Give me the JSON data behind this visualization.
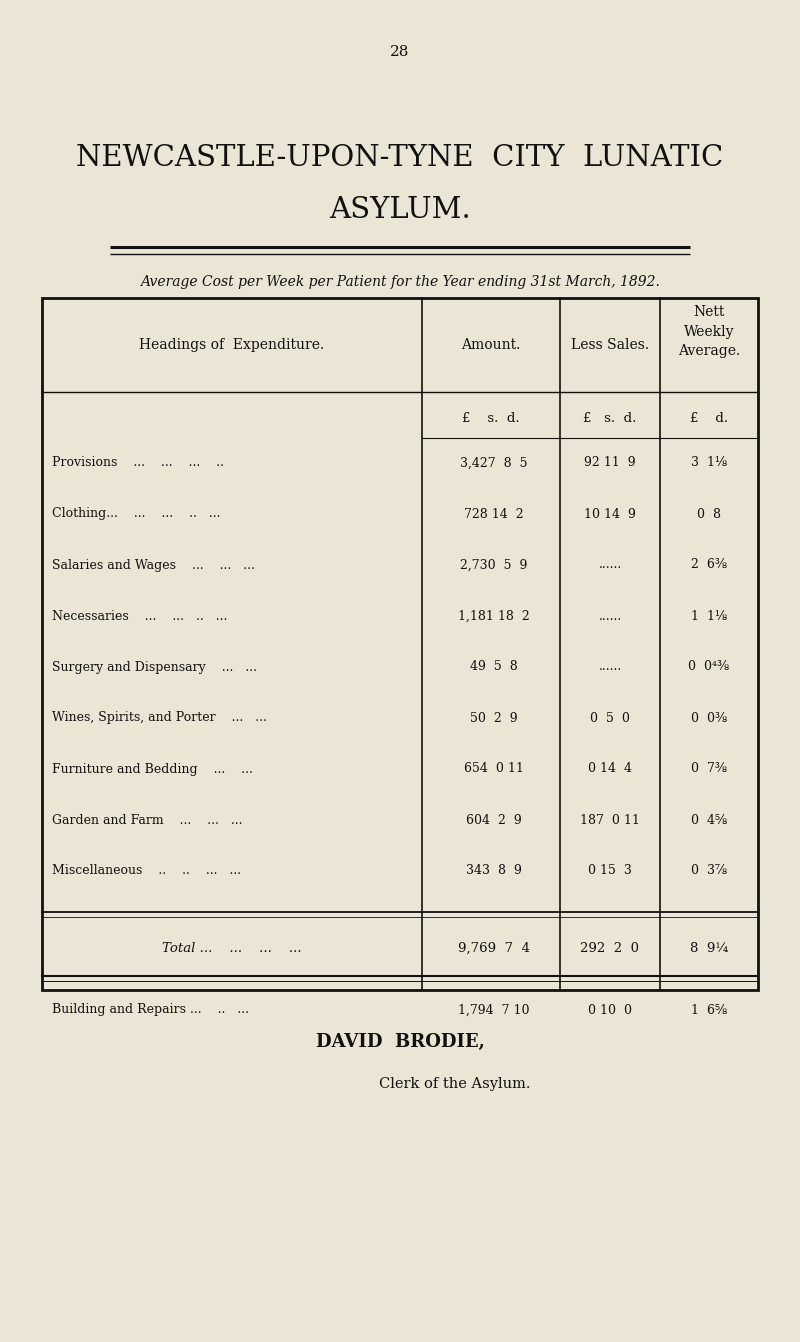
{
  "bg_color": "#EAE5D5",
  "page_number": "28",
  "title_line1": "NEWCASTLE-UPON-TYNE  CITY  LUNATIC",
  "title_line2": "ASYLUM.",
  "subtitle": "Average Cost per Week per Patient for the Year ending 31st March, 1892.",
  "rows": [
    [
      "Provisions    ...    ...    ...    ..",
      "3,427  8  5",
      "92 11  9",
      "3  1⅛"
    ],
    [
      "Clothing...    ...    ...    ..   ...",
      "728 14  2",
      "10 14  9",
      "0  8"
    ],
    [
      "Salaries and Wages    ...    ...   ...",
      "2,730  5  9",
      "......",
      "2  6⅜"
    ],
    [
      "Necessaries    ...    ...   ..   ...",
      "1,181 18  2",
      "......",
      "1  1⅛"
    ],
    [
      "Surgery and Dispensary    ...   ...",
      "49  5  8",
      "......",
      "0  0⅜"
    ],
    [
      "Wines, Spirits, and Porter    ...   ...",
      "50  2  9",
      "0  5  0",
      "0  0⅜"
    ],
    [
      "Furniture and Bedding    ...    ...",
      "654  0 11",
      "0 14  4",
      "0  7⅜"
    ],
    [
      "Garden and Farm    ...    ...   ...",
      "604  2  9",
      "187  0 11",
      "0  4⅝"
    ],
    [
      "Miscellaneous    ..    ..    ...   ...",
      "343  8  9",
      "0 15  3",
      "0  3⅞"
    ]
  ],
  "total_row": [
    "Total ...    ...    ...    ...",
    "9,769  7  4",
    "292  2  0",
    "8  9¼"
  ],
  "building_row": [
    "Building and Repairs ...    ..   ...",
    "1,794  7 10",
    "0 10  0",
    "1  6⅝"
  ],
  "signature_line1": "DAVID  BRODIE,",
  "signature_line2": "Clerk of the Asylum."
}
